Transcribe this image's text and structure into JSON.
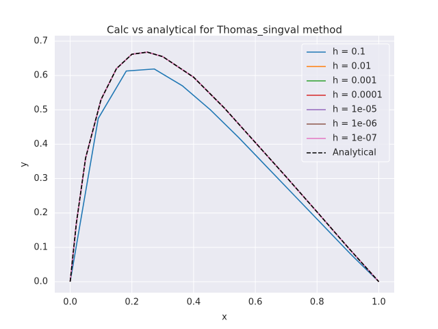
{
  "chart_data": {
    "type": "line",
    "title": "Calc vs analytical for Thomas_singval method",
    "xlabel": "x",
    "ylabel": "y",
    "xlim": [
      -0.05,
      1.05
    ],
    "ylim": [
      -0.032,
      0.716
    ],
    "xticks": [
      {
        "value": 0,
        "label": "0.0"
      },
      {
        "value": 0.2,
        "label": "0.2"
      },
      {
        "value": 0.4,
        "label": "0.4"
      },
      {
        "value": 0.6,
        "label": "0.6"
      },
      {
        "value": 0.8,
        "label": "0.8"
      },
      {
        "value": 1,
        "label": "1.0"
      }
    ],
    "yticks": [
      {
        "value": 0,
        "label": "0.0"
      },
      {
        "value": 0.1,
        "label": "0.1"
      },
      {
        "value": 0.2,
        "label": "0.2"
      },
      {
        "value": 0.3,
        "label": "0.3"
      },
      {
        "value": 0.4,
        "label": "0.4"
      },
      {
        "value": 0.5,
        "label": "0.5"
      },
      {
        "value": 0.6,
        "label": "0.6"
      },
      {
        "value": 0.7,
        "label": "0.7"
      }
    ],
    "grid": true,
    "legend": "upper right",
    "series": [
      {
        "name": "h = 0.1",
        "color": "#1f77b4",
        "x": [
          0,
          0.0909,
          0.1818,
          0.2727,
          0.3636,
          0.4545,
          0.5455,
          0.6364,
          0.7273,
          0.8182,
          0.9091,
          1.0
        ],
        "values": [
          0,
          0.475,
          0.613,
          0.619,
          0.57,
          0.5,
          0.42,
          0.335,
          0.25,
          0.165,
          0.08,
          0
        ]
      },
      {
        "name": "h = 0.01",
        "color": "#ff7f0e",
        "x": [
          0,
          0.02,
          0.05,
          0.1,
          0.15,
          0.2,
          0.25,
          0.3,
          0.4,
          0.5,
          0.6,
          0.7,
          0.8,
          0.9,
          1.0
        ],
        "values": [
          0,
          0.17,
          0.36,
          0.53,
          0.62,
          0.662,
          0.668,
          0.655,
          0.595,
          0.505,
          0.405,
          0.305,
          0.203,
          0.1,
          0
        ]
      },
      {
        "name": "h = 0.001",
        "color": "#2ca02c",
        "x": [
          0,
          0.02,
          0.05,
          0.1,
          0.15,
          0.2,
          0.25,
          0.3,
          0.4,
          0.5,
          0.6,
          0.7,
          0.8,
          0.9,
          1.0
        ],
        "values": [
          0,
          0.17,
          0.36,
          0.53,
          0.62,
          0.662,
          0.668,
          0.655,
          0.595,
          0.505,
          0.405,
          0.305,
          0.203,
          0.1,
          0
        ]
      },
      {
        "name": "h = 0.0001",
        "color": "#d62728",
        "x": [
          0,
          0.02,
          0.05,
          0.1,
          0.15,
          0.2,
          0.25,
          0.3,
          0.4,
          0.5,
          0.6,
          0.7,
          0.8,
          0.9,
          1.0
        ],
        "values": [
          0,
          0.17,
          0.36,
          0.53,
          0.62,
          0.662,
          0.668,
          0.655,
          0.595,
          0.505,
          0.405,
          0.305,
          0.203,
          0.1,
          0
        ]
      },
      {
        "name": "h = 1e-05",
        "color": "#9467bd",
        "x": [
          0,
          0.02,
          0.05,
          0.1,
          0.15,
          0.2,
          0.25,
          0.3,
          0.4,
          0.5,
          0.6,
          0.7,
          0.8,
          0.9,
          1.0
        ],
        "values": [
          0,
          0.17,
          0.36,
          0.53,
          0.62,
          0.662,
          0.668,
          0.655,
          0.595,
          0.505,
          0.405,
          0.305,
          0.203,
          0.1,
          0
        ]
      },
      {
        "name": "h = 1e-06",
        "color": "#8c564b",
        "x": [
          0,
          0.02,
          0.05,
          0.1,
          0.15,
          0.2,
          0.25,
          0.3,
          0.4,
          0.5,
          0.6,
          0.7,
          0.8,
          0.9,
          1.0
        ],
        "values": [
          0,
          0.17,
          0.36,
          0.53,
          0.62,
          0.662,
          0.668,
          0.655,
          0.595,
          0.505,
          0.405,
          0.305,
          0.203,
          0.1,
          0
        ]
      },
      {
        "name": "h = 1e-07",
        "color": "#e377c2",
        "x": [
          0,
          0.02,
          0.05,
          0.1,
          0.15,
          0.2,
          0.25,
          0.3,
          0.4,
          0.5,
          0.6,
          0.7,
          0.8,
          0.9,
          1.0
        ],
        "values": [
          0,
          0.17,
          0.36,
          0.53,
          0.62,
          0.662,
          0.668,
          0.655,
          0.595,
          0.505,
          0.405,
          0.305,
          0.203,
          0.1,
          0
        ]
      },
      {
        "name": "Analytical",
        "color": "#000000",
        "linestyle": "dashed",
        "x": [
          0,
          0.02,
          0.05,
          0.1,
          0.15,
          0.2,
          0.25,
          0.3,
          0.4,
          0.5,
          0.6,
          0.7,
          0.8,
          0.9,
          1.0
        ],
        "values": [
          0,
          0.17,
          0.36,
          0.53,
          0.62,
          0.662,
          0.668,
          0.655,
          0.595,
          0.505,
          0.405,
          0.305,
          0.203,
          0.1,
          0
        ]
      }
    ]
  }
}
